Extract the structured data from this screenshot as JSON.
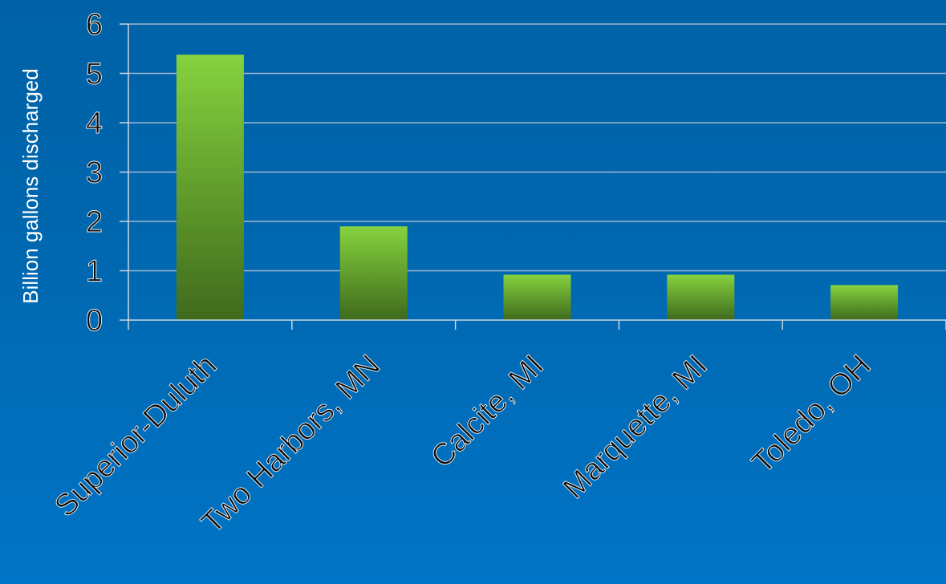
{
  "chart_data": {
    "type": "bar",
    "title": "",
    "xlabel": "",
    "ylabel": "Billion gallons discharged",
    "categories": [
      "Superior-Duluth",
      "Two Harbors, MN",
      "Calcite, MI",
      "Marquette, MI",
      "Toledo, OH"
    ],
    "values": [
      5.38,
      1.9,
      0.92,
      0.92,
      0.71
    ],
    "ylim": [
      0,
      6
    ],
    "yticks": [
      "0",
      "1",
      "2",
      "3",
      "4",
      "5",
      "6"
    ],
    "grid": true,
    "legend": "none",
    "colors": {
      "bar_top": "#86d23e",
      "bar_bottom": "#3f6a1c",
      "gridline": "#9fb6cc",
      "axis": "#c9d6e3",
      "background": "#0068b0"
    }
  }
}
